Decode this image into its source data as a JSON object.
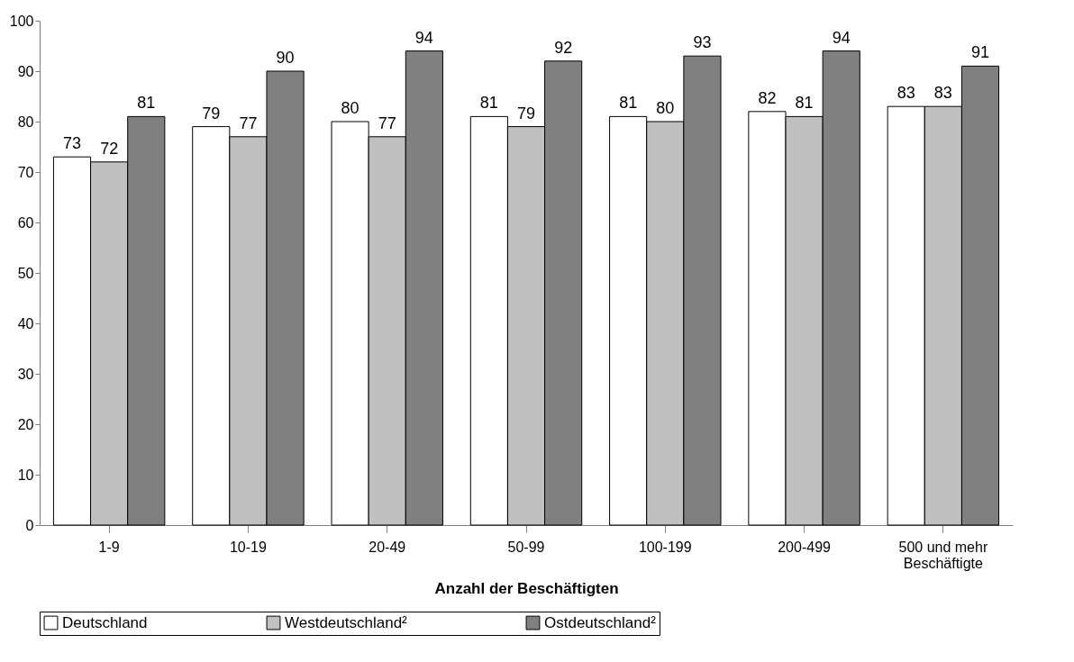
{
  "chart_data": {
    "type": "bar",
    "xlabel": "Anzahl der Beschäftigten",
    "categories": [
      "1-9",
      "10-19",
      "20-49",
      "50-99",
      "100-199",
      "200-499",
      "500 und mehr\nBeschäftigte"
    ],
    "series": [
      {
        "name": "Deutschland",
        "color": "#ffffff",
        "values": [
          73,
          79,
          80,
          81,
          81,
          82,
          83
        ]
      },
      {
        "name": "Westdeutschland²",
        "color": "#c0c0c0",
        "values": [
          72,
          77,
          77,
          79,
          80,
          81,
          83
        ]
      },
      {
        "name": "Ostdeutschland²",
        "color": "#808080",
        "values": [
          81,
          90,
          94,
          92,
          93,
          94,
          91
        ]
      }
    ],
    "ylim": [
      0,
      100
    ],
    "yticks": [
      0,
      10,
      20,
      30,
      40,
      50,
      60,
      70,
      80,
      90,
      100
    ],
    "grid": false,
    "legend": "bottom",
    "data_labels": true
  }
}
